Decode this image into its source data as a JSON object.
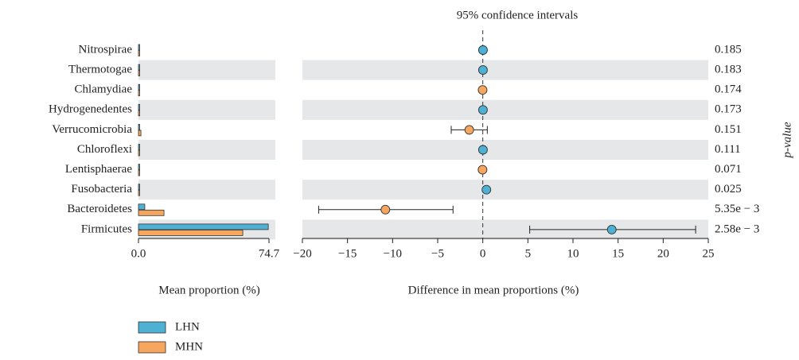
{
  "chart_data": [
    {
      "type": "hbar",
      "categories": [
        "Nitrospirae",
        "Thermotogae",
        "Chlamydiae",
        "Hydrogenedentes",
        "Verrucomicrobia",
        "Chloroflexi",
        "Lentisphaerae",
        "Fusobacteria",
        "Bacteroidetes",
        "Firmicutes"
      ],
      "series": [
        {
          "name": "LHN",
          "color": "#4eb1d3",
          "values": [
            0.1,
            0.1,
            0.05,
            0.1,
            0.5,
            0.1,
            0.05,
            0.3,
            3.6,
            74.3
          ]
        },
        {
          "name": "MHN",
          "color": "#f6a65e",
          "values": [
            0.05,
            0.05,
            0.1,
            0.05,
            1.4,
            0.05,
            0.1,
            0.2,
            14.6,
            59.7
          ]
        }
      ],
      "xlim": [
        0,
        74.7
      ],
      "xticks": [
        {
          "value": 0,
          "label": "0.0"
        },
        74.7
      ],
      "x_label": "Mean proportion (%)"
    },
    {
      "type": "errorbar",
      "title": "95% confidence intervals",
      "values": [
        0.02,
        0.02,
        -0.02,
        0.02,
        -1.5,
        0.02,
        -0.03,
        0.4,
        -10.8,
        14.3
      ],
      "ci_low": [
        0.02,
        0.02,
        -0.02,
        0.02,
        -3.5,
        0.02,
        -0.03,
        0.4,
        -18.2,
        5.2
      ],
      "ci_high": [
        0.02,
        0.02,
        -0.02,
        0.02,
        0.5,
        0.02,
        -0.03,
        0.4,
        -3.3,
        23.6
      ],
      "xlim": [
        -20,
        25
      ],
      "xticks": [
        {
          "value": -20,
          "label": "−20"
        },
        {
          "value": -15,
          "label": "−15"
        },
        {
          "value": -10,
          "label": "−10"
        },
        {
          "value": -5,
          "label": "−5"
        },
        0,
        5,
        10,
        15,
        20,
        25
      ],
      "x_label": "Difference in mean proportions (%)",
      "p_values": [
        0.185,
        0.183,
        0.174,
        0.173,
        0.151,
        0.111,
        0.071,
        0.025,
        0.00535,
        0.00258
      ],
      "p_value_labels": [
        "0.185",
        "0.183",
        "0.174",
        "0.173",
        "0.151",
        "0.111",
        "0.071",
        "0.025",
        "5.35e − 3",
        "2.58e − 3"
      ],
      "y2_label": "p-value"
    }
  ]
}
